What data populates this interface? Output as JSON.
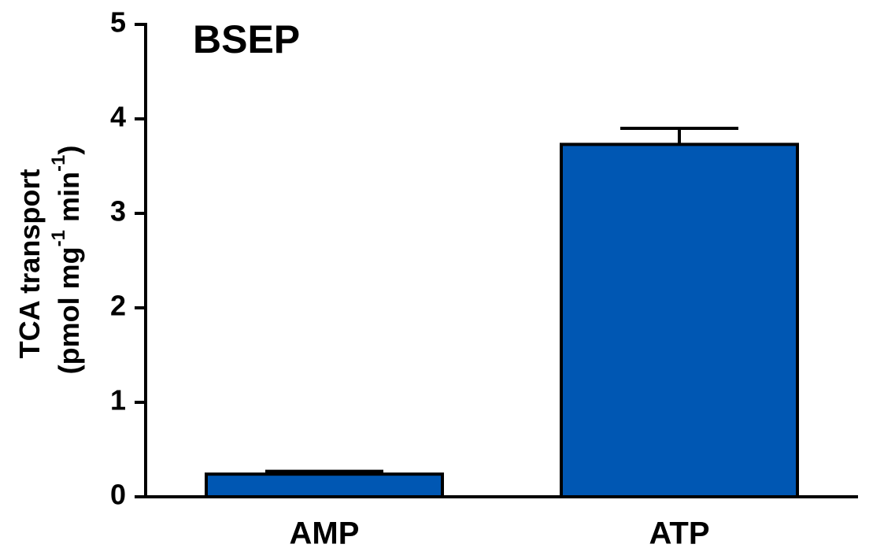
{
  "chart_data": {
    "type": "bar",
    "title": "BSEP",
    "ylabel": [
      "TCA transport",
      "(pmol mg",
      "-1",
      "min",
      "-1",
      ")"
    ],
    "categories": [
      "AMP",
      "ATP"
    ],
    "values": [
      0.24,
      3.73
    ],
    "errors": [
      0.03,
      0.17
    ],
    "color": "#0057b3",
    "ylim": [
      0,
      5
    ],
    "yticks": [
      0,
      1,
      2,
      3,
      4,
      5
    ],
    "grid": false
  }
}
